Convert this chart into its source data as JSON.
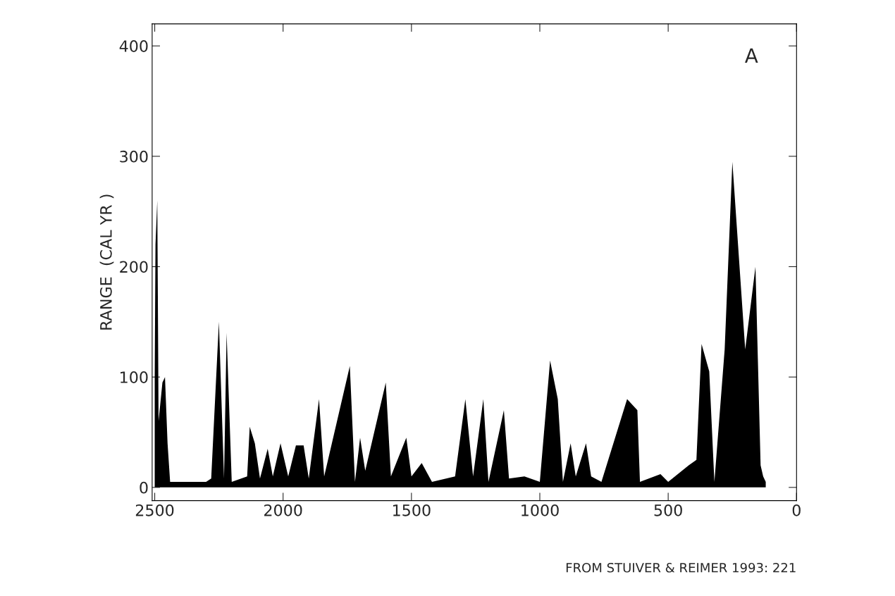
{
  "chart_data": {
    "type": "area",
    "ylabel": "RANGE  (CAL YR )",
    "annotations": [
      "A",
      "FROM STUIVER & REIMER 1993: 221"
    ],
    "x": [
      2500,
      2497,
      2490,
      2485,
      2470,
      2460,
      2450,
      2440,
      2300,
      2280,
      2250,
      2230,
      2220,
      2200,
      2140,
      2130,
      2110,
      2090,
      2060,
      2040,
      2010,
      1980,
      1950,
      1920,
      1900,
      1860,
      1840,
      1780,
      1740,
      1720,
      1700,
      1680,
      1600,
      1580,
      1520,
      1500,
      1460,
      1420,
      1330,
      1290,
      1260,
      1220,
      1200,
      1140,
      1120,
      1060,
      1000,
      960,
      930,
      910,
      880,
      860,
      820,
      800,
      760,
      660,
      620,
      610,
      530,
      500,
      420,
      390,
      370,
      340,
      320,
      280,
      250,
      200,
      160,
      140,
      130,
      120
    ],
    "series": [
      {
        "color": "#000000",
        "values": [
          100,
          220,
          260,
          60,
          95,
          100,
          40,
          5,
          5,
          8,
          150,
          8,
          140,
          5,
          10,
          55,
          40,
          8,
          35,
          10,
          40,
          10,
          38,
          38,
          8,
          80,
          10,
          70,
          110,
          5,
          45,
          15,
          95,
          10,
          45,
          10,
          22,
          5,
          10,
          80,
          10,
          80,
          5,
          70,
          8,
          10,
          5,
          115,
          80,
          5,
          40,
          10,
          40,
          10,
          5,
          80,
          70,
          5,
          12,
          5,
          20,
          25,
          130,
          105,
          5,
          125,
          295,
          125,
          200,
          20,
          10,
          5
        ]
      }
    ],
    "xlim": [
      2510,
      0
    ],
    "ylim": [
      -12,
      420
    ],
    "xticks": [
      2500,
      2000,
      1500,
      1000,
      500,
      0
    ],
    "yticks": [
      0,
      100,
      200,
      300,
      400
    ],
    "grid": false,
    "legend": false
  }
}
